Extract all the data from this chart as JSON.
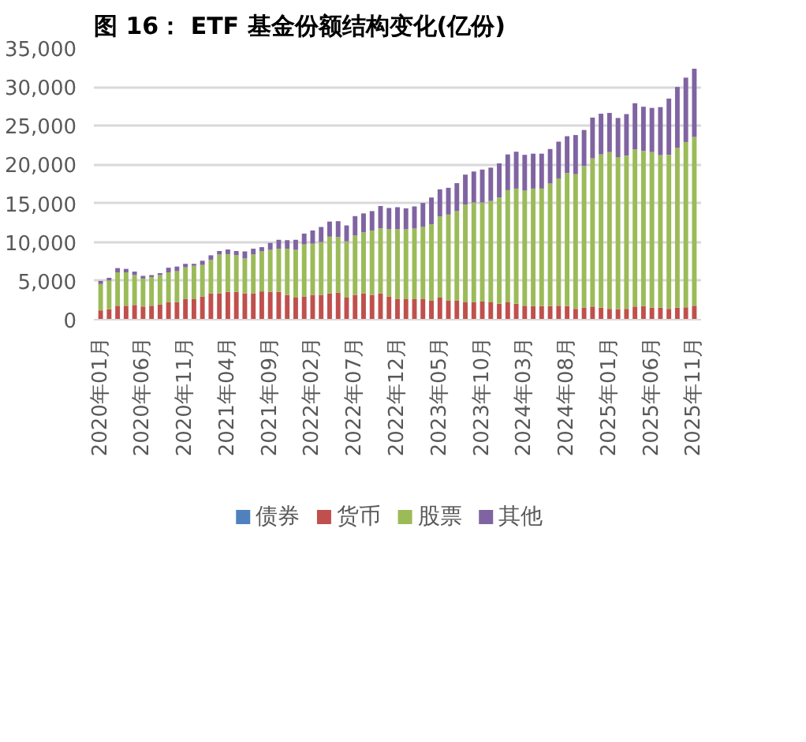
{
  "chart_data": {
    "type": "bar",
    "title": "图 16： ETF 基金份额结构变化(亿份)",
    "stacked": true,
    "categories": [
      "2020年01月",
      null,
      null,
      null,
      null,
      "2020年06月",
      null,
      null,
      null,
      null,
      "2020年11月",
      null,
      null,
      null,
      null,
      "2021年04月",
      null,
      null,
      null,
      null,
      "2021年09月",
      null,
      null,
      null,
      null,
      "2022年02月",
      null,
      null,
      null,
      null,
      "2022年07月",
      null,
      null,
      null,
      null,
      "2022年12月",
      null,
      null,
      null,
      null,
      "2023年05月",
      null,
      null,
      null,
      null,
      "2023年10月",
      null,
      null,
      null,
      null,
      "2024年03月",
      null,
      null,
      null,
      null,
      "2024年08月",
      null,
      null,
      null,
      null,
      "2025年01月",
      null,
      null,
      null,
      null,
      "2025年06月",
      null,
      null,
      null,
      null,
      "2025年11月"
    ],
    "series": [
      {
        "name": "债券",
        "color": "#4f81bd",
        "values": [
          0,
          0,
          0,
          0,
          0,
          0,
          0,
          0,
          0,
          0,
          0,
          0,
          0,
          0,
          0,
          0,
          0,
          0,
          0,
          0,
          0,
          0,
          0,
          0,
          0,
          0,
          0,
          0,
          0,
          0,
          0,
          0,
          0,
          0,
          0,
          0,
          0,
          0,
          0,
          0,
          0,
          0,
          0,
          0,
          0,
          0,
          0,
          0,
          0,
          0,
          0,
          0,
          0,
          0,
          0,
          0,
          0,
          0,
          0,
          0,
          0,
          0,
          0,
          0,
          0,
          0,
          0,
          0,
          0,
          0,
          0
        ]
      },
      {
        "name": "货币",
        "color": "#c0504d",
        "values": [
          1200,
          1350,
          1800,
          1800,
          1900,
          1700,
          1800,
          1950,
          2250,
          2250,
          2650,
          2650,
          3000,
          3400,
          3400,
          3600,
          3600,
          3400,
          3400,
          3650,
          3600,
          3600,
          3200,
          2850,
          3000,
          3200,
          3200,
          3400,
          3500,
          2850,
          3200,
          3400,
          3200,
          3400,
          3000,
          2650,
          2650,
          2650,
          2650,
          2450,
          2850,
          2450,
          2450,
          2300,
          2250,
          2350,
          2250,
          2050,
          2250,
          2050,
          1800,
          1750,
          1750,
          1750,
          1800,
          1750,
          1400,
          1550,
          1700,
          1550,
          1400,
          1350,
          1400,
          1700,
          1750,
          1550,
          1550,
          1400,
          1550,
          1600,
          1800
        ]
      },
      {
        "name": "股票",
        "color": "#9bbb59",
        "values": [
          3400,
          3700,
          4300,
          4300,
          3850,
          3600,
          3700,
          3800,
          3850,
          4000,
          4100,
          4300,
          4050,
          4300,
          5000,
          4850,
          4700,
          4500,
          5000,
          5150,
          5400,
          5550,
          5950,
          6150,
          6700,
          6600,
          6800,
          7300,
          7150,
          7250,
          7650,
          7850,
          8300,
          8400,
          8650,
          9000,
          9000,
          9100,
          9300,
          9850,
          10450,
          11100,
          11550,
          12550,
          12850,
          12750,
          13050,
          13700,
          14450,
          14850,
          14850,
          15150,
          15150,
          15800,
          16400,
          17150,
          17350,
          18250,
          19100,
          19750,
          20200,
          19600,
          19750,
          20250,
          20000,
          20050,
          19650,
          19850,
          20600,
          21300,
          21750
        ]
      },
      {
        "name": "其他",
        "color": "#8064a2",
        "values": [
          400,
          350,
          550,
          450,
          450,
          350,
          250,
          250,
          600,
          600,
          450,
          250,
          550,
          600,
          450,
          600,
          550,
          900,
          750,
          550,
          900,
          1150,
          1100,
          1300,
          1400,
          1700,
          1950,
          1950,
          2050,
          2050,
          2500,
          2450,
          2500,
          2850,
          2750,
          2850,
          2700,
          2850,
          3100,
          3450,
          3500,
          3450,
          3600,
          3850,
          4000,
          4250,
          4300,
          4400,
          4600,
          4750,
          4600,
          4500,
          4500,
          4450,
          4750,
          4750,
          5050,
          4650,
          5250,
          5250,
          5050,
          5050,
          5350,
          5950,
          5700,
          5700,
          6200,
          7250,
          7850,
          8300,
          8800
        ]
      }
    ],
    "ylim": [
      0,
      35000
    ],
    "yticks": [
      0,
      {
        "value": 5000,
        "label": "5,000"
      },
      {
        "value": 10000,
        "label": "10,000"
      },
      {
        "value": 15000,
        "label": "15,000"
      },
      {
        "value": 20000,
        "label": "20,000"
      },
      {
        "value": 25000,
        "label": "25,000"
      },
      {
        "value": 30000,
        "label": "30,000"
      },
      {
        "value": 35000,
        "label": "35,000"
      }
    ],
    "grid": "y",
    "legend": "bottom"
  }
}
